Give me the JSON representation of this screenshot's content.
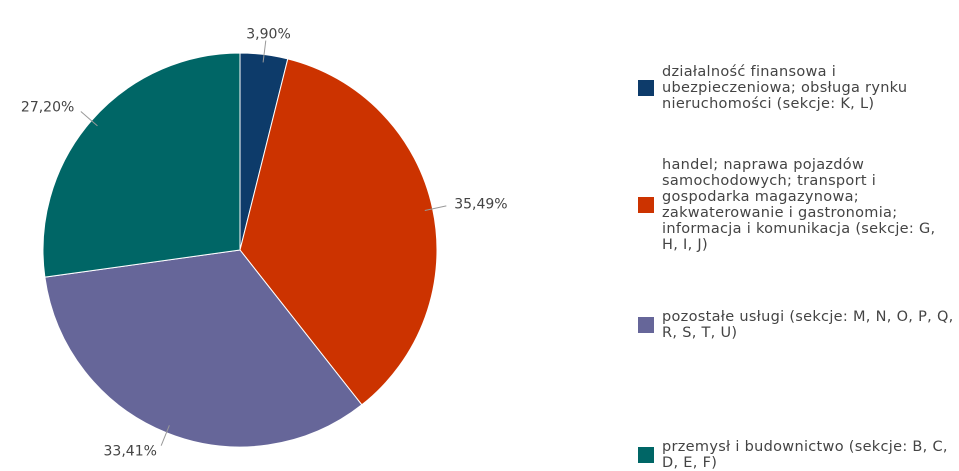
{
  "chart_data": {
    "type": "pie",
    "categories": [
      "działalność finansowa i ubezpieczeniowa; obsługa rynku nieruchomości (sekcje: K, L)",
      "handel; naprawa pojazdów samochodowych; transport i gospodarka magazynowa; zakwaterowanie i gastronomia; informacja i komunikacja (sekcje: G, H, I, J)",
      "pozostałe usługi (sekcje: M, N, O, P, Q, R, S, T, U)",
      "przemysł i budownictwo (sekcje: B, C, D, E, F)"
    ],
    "values": [
      3.9,
      35.49,
      33.41,
      27.2
    ],
    "value_labels": [
      "3,90%",
      "35,49%",
      "33,41%",
      "27,20%"
    ],
    "colors": [
      "#0d3b6a",
      "#cc3300",
      "#666699",
      "#006666"
    ],
    "legend": "right"
  }
}
